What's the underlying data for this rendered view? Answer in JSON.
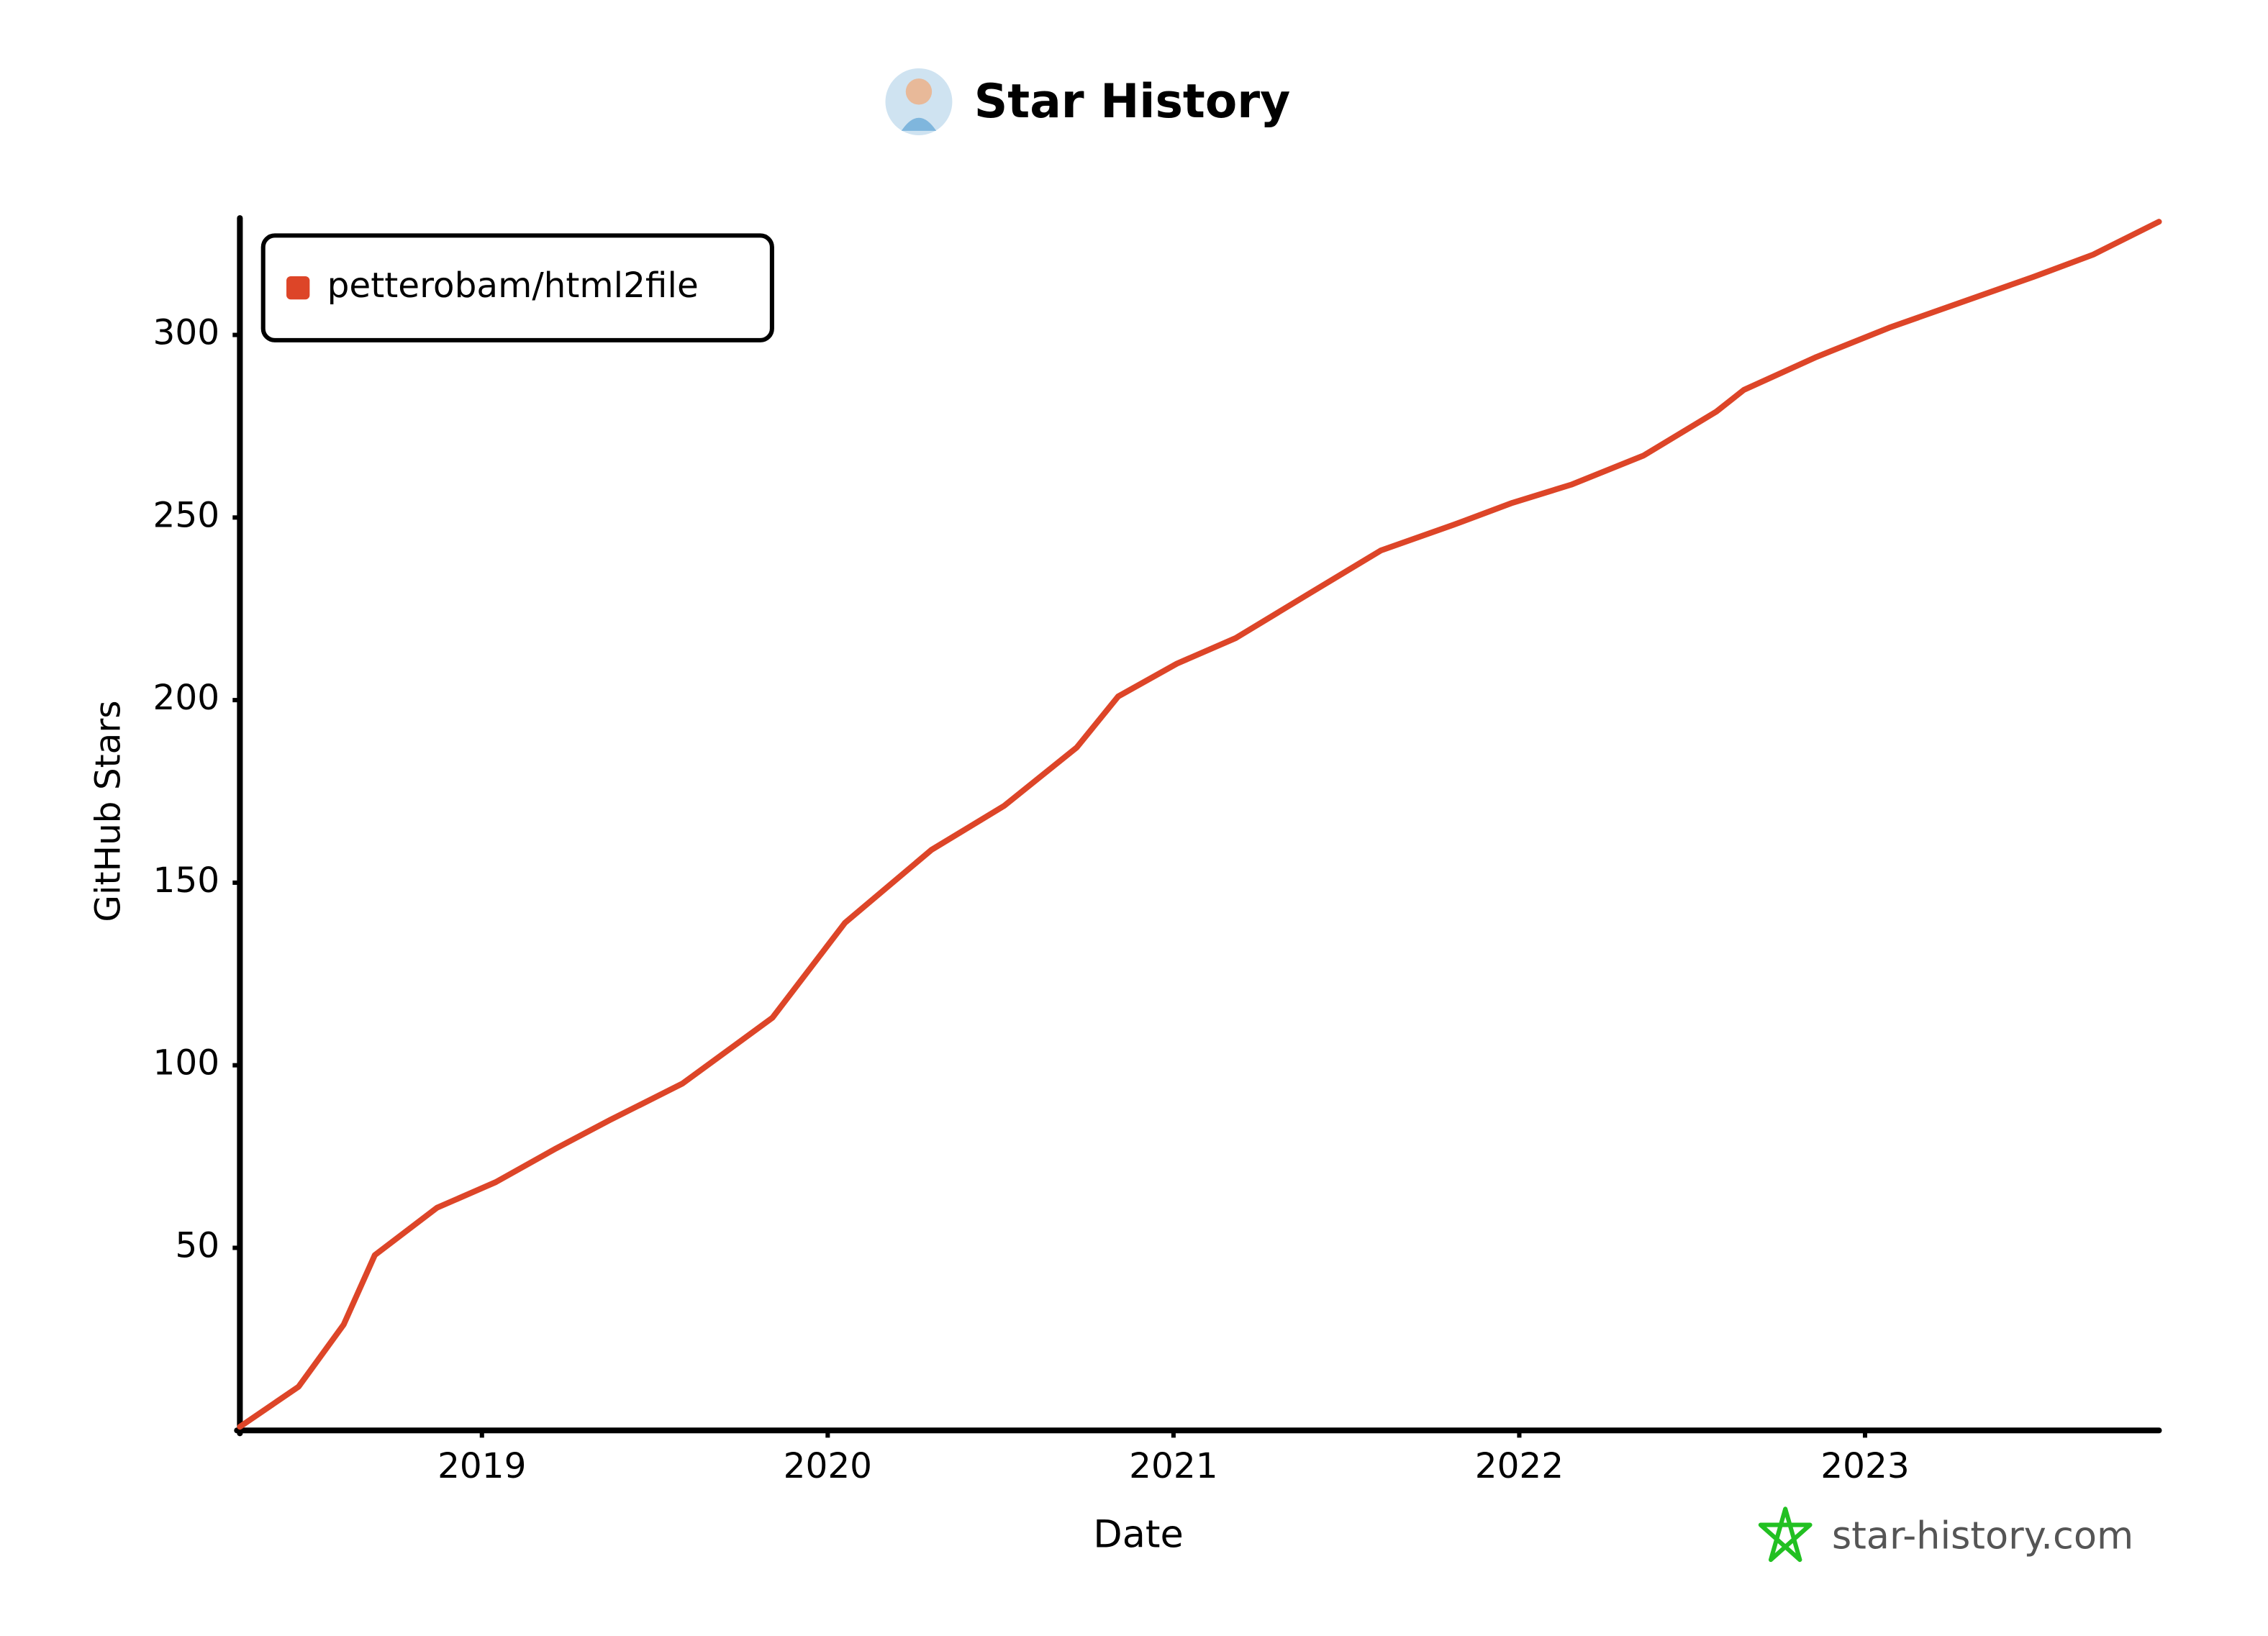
{
  "chart_data": {
    "type": "line",
    "title": "Star History",
    "x_label": "Date",
    "y_label": "GitHub Stars",
    "watermark": "star-history.com",
    "legend": "top-left",
    "grid": false,
    "xlim": [
      2018.3,
      2023.85
    ],
    "xticks": [
      2019,
      2020,
      2021,
      2022,
      2023
    ],
    "ylim": [
      0,
      332
    ],
    "yticks": [
      50,
      100,
      150,
      200,
      250,
      300
    ],
    "series": [
      {
        "name": "petterobam/html2file",
        "color": "#dd4528",
        "x": [
          2018.3,
          2018.47,
          2018.6,
          2018.69,
          2018.87,
          2019.04,
          2019.21,
          2019.37,
          2019.58,
          2019.84,
          2020.05,
          2020.3,
          2020.51,
          2020.72,
          2020.84,
          2021.01,
          2021.18,
          2021.39,
          2021.6,
          2021.81,
          2021.98,
          2022.15,
          2022.36,
          2022.57,
          2022.65,
          2022.86,
          2023.07,
          2023.28,
          2023.49,
          2023.66,
          2023.85
        ],
        "values": [
          1,
          12,
          29,
          48,
          61,
          68,
          77,
          85,
          95,
          113,
          139,
          159,
          171,
          187,
          201,
          210,
          217,
          229,
          241,
          248,
          254,
          259,
          267,
          279,
          285,
          294,
          302,
          309,
          316,
          322,
          331
        ]
      }
    ]
  }
}
